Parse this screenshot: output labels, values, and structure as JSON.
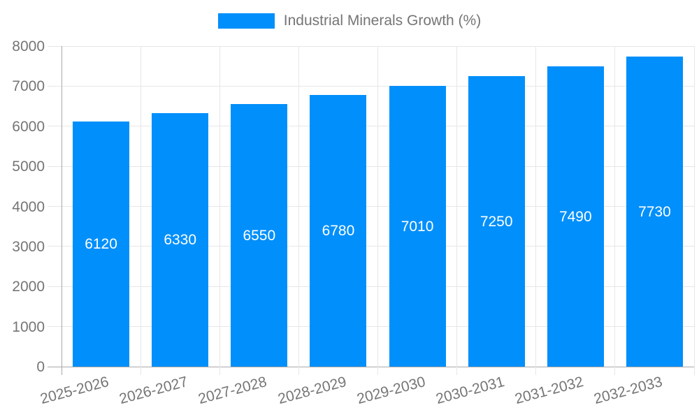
{
  "legend": {
    "label": "Industrial Minerals Growth (%)"
  },
  "chart_data": {
    "type": "bar",
    "title": "Industrial Minerals Growth (%)",
    "categories": [
      "2025-2026",
      "2026-2027",
      "2027-2028",
      "2028-2029",
      "2029-2030",
      "2030-2031",
      "2031-2032",
      "2032-2033"
    ],
    "values": [
      6120,
      6330,
      6550,
      6780,
      7010,
      7250,
      7490,
      7730
    ],
    "value_labels": [
      "6120",
      "6330",
      "6550",
      "6780",
      "7010",
      "7250",
      "7490",
      "7730"
    ],
    "xlabel": "",
    "ylabel": "",
    "ylim": [
      0,
      8000
    ],
    "ytick_step": 1000,
    "ytick_labels": [
      "0",
      "1000",
      "2000",
      "3000",
      "4000",
      "5000",
      "6000",
      "7000",
      "8000"
    ],
    "grid": true,
    "legend_position": "top",
    "colors": {
      "bar": "#008FFB",
      "bar_value_text": "#ffffff",
      "axis_text": "#757575",
      "gridline": "#e7e7e7",
      "axis_line": "#a8a8a8",
      "tick": "#d0d0d0",
      "background": "#ffffff"
    }
  }
}
